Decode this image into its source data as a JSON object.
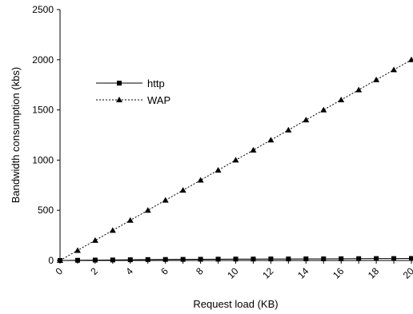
{
  "chart_data": {
    "type": "line",
    "title": "",
    "xlabel": "Request load (KB)",
    "ylabel": "Bandwidth consumption (kbs)",
    "x": [
      0,
      1,
      2,
      3,
      4,
      5,
      6,
      7,
      8,
      9,
      10,
      11,
      12,
      13,
      14,
      15,
      16,
      17,
      18,
      19,
      20
    ],
    "xticks": [
      0,
      2,
      4,
      6,
      8,
      10,
      12,
      14,
      16,
      18,
      20
    ],
    "yticks": [
      0,
      500,
      1000,
      1500,
      2000,
      2500
    ],
    "xlim": [
      0,
      20
    ],
    "ylim": [
      0,
      2500
    ],
    "grid": false,
    "legend_position": "upper-left",
    "series": [
      {
        "name": "http",
        "marker": "square",
        "line_style": "solid",
        "color": "#000000",
        "values": [
          0,
          2,
          4,
          5,
          7,
          9,
          10,
          11,
          12,
          13,
          14,
          14,
          15,
          15,
          16,
          16,
          17,
          18,
          19,
          19,
          20
        ]
      },
      {
        "name": "WAP",
        "marker": "triangle",
        "line_style": "dotted",
        "color": "#000000",
        "values": [
          0,
          100,
          200,
          300,
          400,
          500,
          600,
          700,
          800,
          900,
          1000,
          1100,
          1200,
          1300,
          1400,
          1500,
          1600,
          1700,
          1800,
          1900,
          2000
        ]
      }
    ]
  }
}
